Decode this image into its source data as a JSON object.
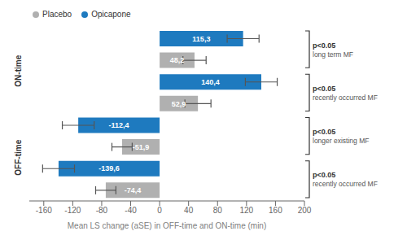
{
  "chart_data": {
    "type": "bar",
    "orientation": "horizontal",
    "categories": [
      null,
      null,
      null,
      null,
      null,
      null,
      null,
      null
    ],
    "series": [
      {
        "name": "Placebo",
        "color": "#b0b0b0",
        "values": [
          null,
          48.2,
          null,
          52.9,
          null,
          -51.9,
          null,
          -74.4
        ],
        "value_labels": [
          null,
          "48,2",
          null,
          "52,9",
          null,
          "-51,9",
          null,
          "-74,4"
        ],
        "errors": [
          null,
          16,
          null,
          18,
          null,
          14,
          null,
          14
        ]
      },
      {
        "name": "Opicapone",
        "color": "#1e7abf",
        "values": [
          115.3,
          null,
          140.4,
          null,
          -112.4,
          null,
          -139.6,
          null
        ],
        "value_labels": [
          "115,3",
          null,
          "140,4",
          null,
          "-112,4",
          null,
          "-139,6",
          null
        ],
        "errors": [
          22,
          null,
          22,
          null,
          22,
          null,
          22,
          null
        ]
      }
    ],
    "xlabel": "Mean LS change (aSE) in OFF-time and ON-time (min)",
    "xlim": [
      -180,
      200
    ],
    "xticks": [
      -160,
      -120,
      -80,
      -40,
      0,
      40,
      80,
      120,
      160,
      200
    ],
    "data_labels": true,
    "tick_labels": "x",
    "legend": "upper left",
    "group_labels": [
      "ON-time",
      "OFF-time"
    ],
    "annotations": [
      {
        "text": "p<0.05",
        "detail": "long term MF"
      },
      {
        "text": "p<0.05",
        "detail": "recently occurred MF"
      },
      {
        "text": "p<0.05",
        "detail": "longer existing MF"
      },
      {
        "text": "p<0.05",
        "detail": "recently occurred MF"
      }
    ]
  }
}
